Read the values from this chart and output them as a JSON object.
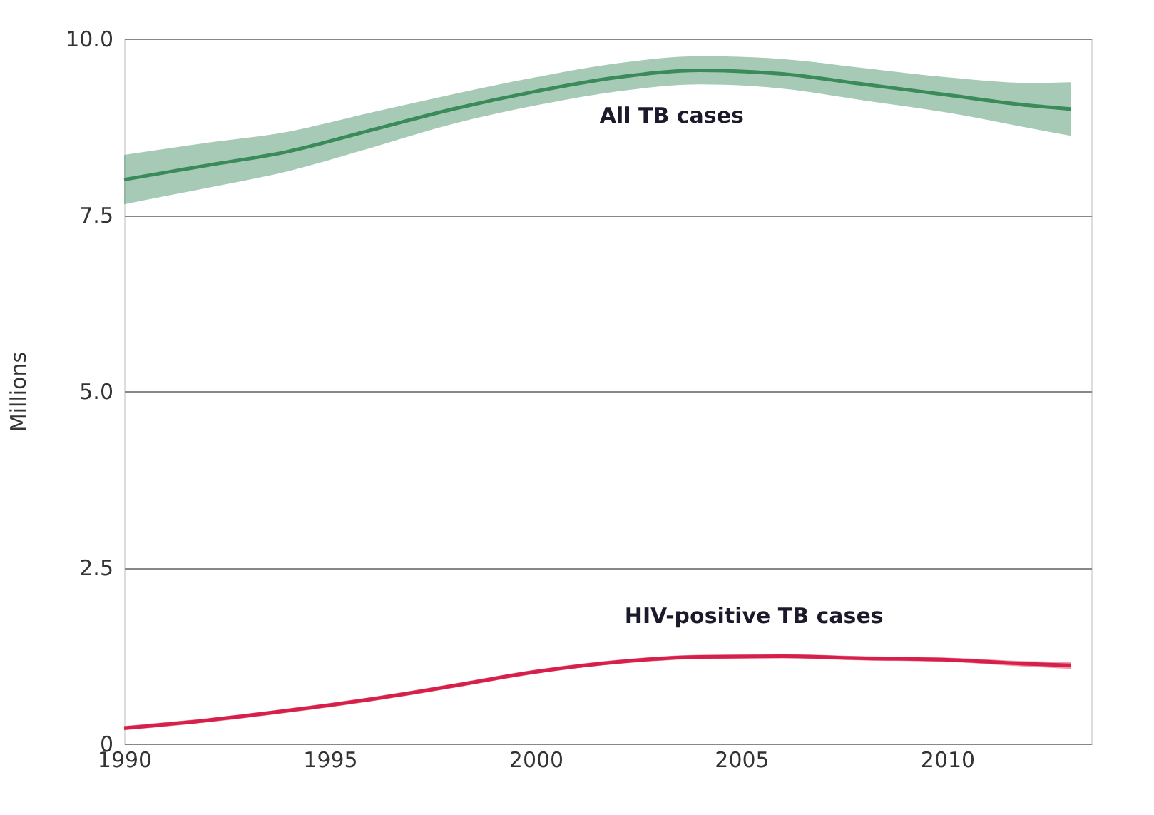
{
  "chart_data": {
    "type": "line",
    "ylabel": "Millions",
    "x": [
      1990,
      1992,
      1994,
      1996,
      1998,
      2000,
      2002,
      2004,
      2006,
      2008,
      2010,
      2012,
      2013
    ],
    "series": [
      {
        "name": "All TB cases",
        "color": "#3a8a5a",
        "values": [
          8.0,
          8.2,
          8.4,
          8.7,
          9.0,
          9.25,
          9.45,
          9.55,
          9.5,
          9.35,
          9.2,
          9.05,
          9.0
        ],
        "lower": [
          7.65,
          7.88,
          8.12,
          8.45,
          8.79,
          9.05,
          9.25,
          9.35,
          9.29,
          9.12,
          8.95,
          8.73,
          8.62
        ],
        "upper": [
          8.35,
          8.52,
          8.68,
          8.95,
          9.21,
          9.45,
          9.65,
          9.75,
          9.71,
          9.58,
          9.45,
          9.37,
          9.38
        ]
      },
      {
        "name": "HIV-positive TB cases",
        "color": "#d6204a",
        "values": [
          0.22,
          0.33,
          0.47,
          0.63,
          0.82,
          1.02,
          1.16,
          1.23,
          1.24,
          1.21,
          1.19,
          1.13,
          1.11
        ],
        "lower": [
          0.19,
          0.3,
          0.44,
          0.6,
          0.79,
          0.99,
          1.13,
          1.2,
          1.21,
          1.18,
          1.16,
          1.09,
          1.06
        ],
        "upper": [
          0.25,
          0.36,
          0.5,
          0.66,
          0.85,
          1.05,
          1.19,
          1.26,
          1.27,
          1.24,
          1.22,
          1.17,
          1.16
        ]
      }
    ],
    "xlim": [
      1990,
      2013.5
    ],
    "xticks": [
      1990,
      1995,
      2000,
      2005,
      2010
    ],
    "ylim": [
      0,
      10
    ],
    "yticks": [
      {
        "value": 0,
        "label": "0"
      },
      {
        "value": 2.5,
        "label": "2.5"
      },
      {
        "value": 5,
        "label": "5.0"
      },
      {
        "value": 7.5,
        "label": "7.5"
      },
      {
        "value": 10,
        "label": "10.0"
      }
    ],
    "grid": "y",
    "marker": "none",
    "line_style": "solid"
  }
}
